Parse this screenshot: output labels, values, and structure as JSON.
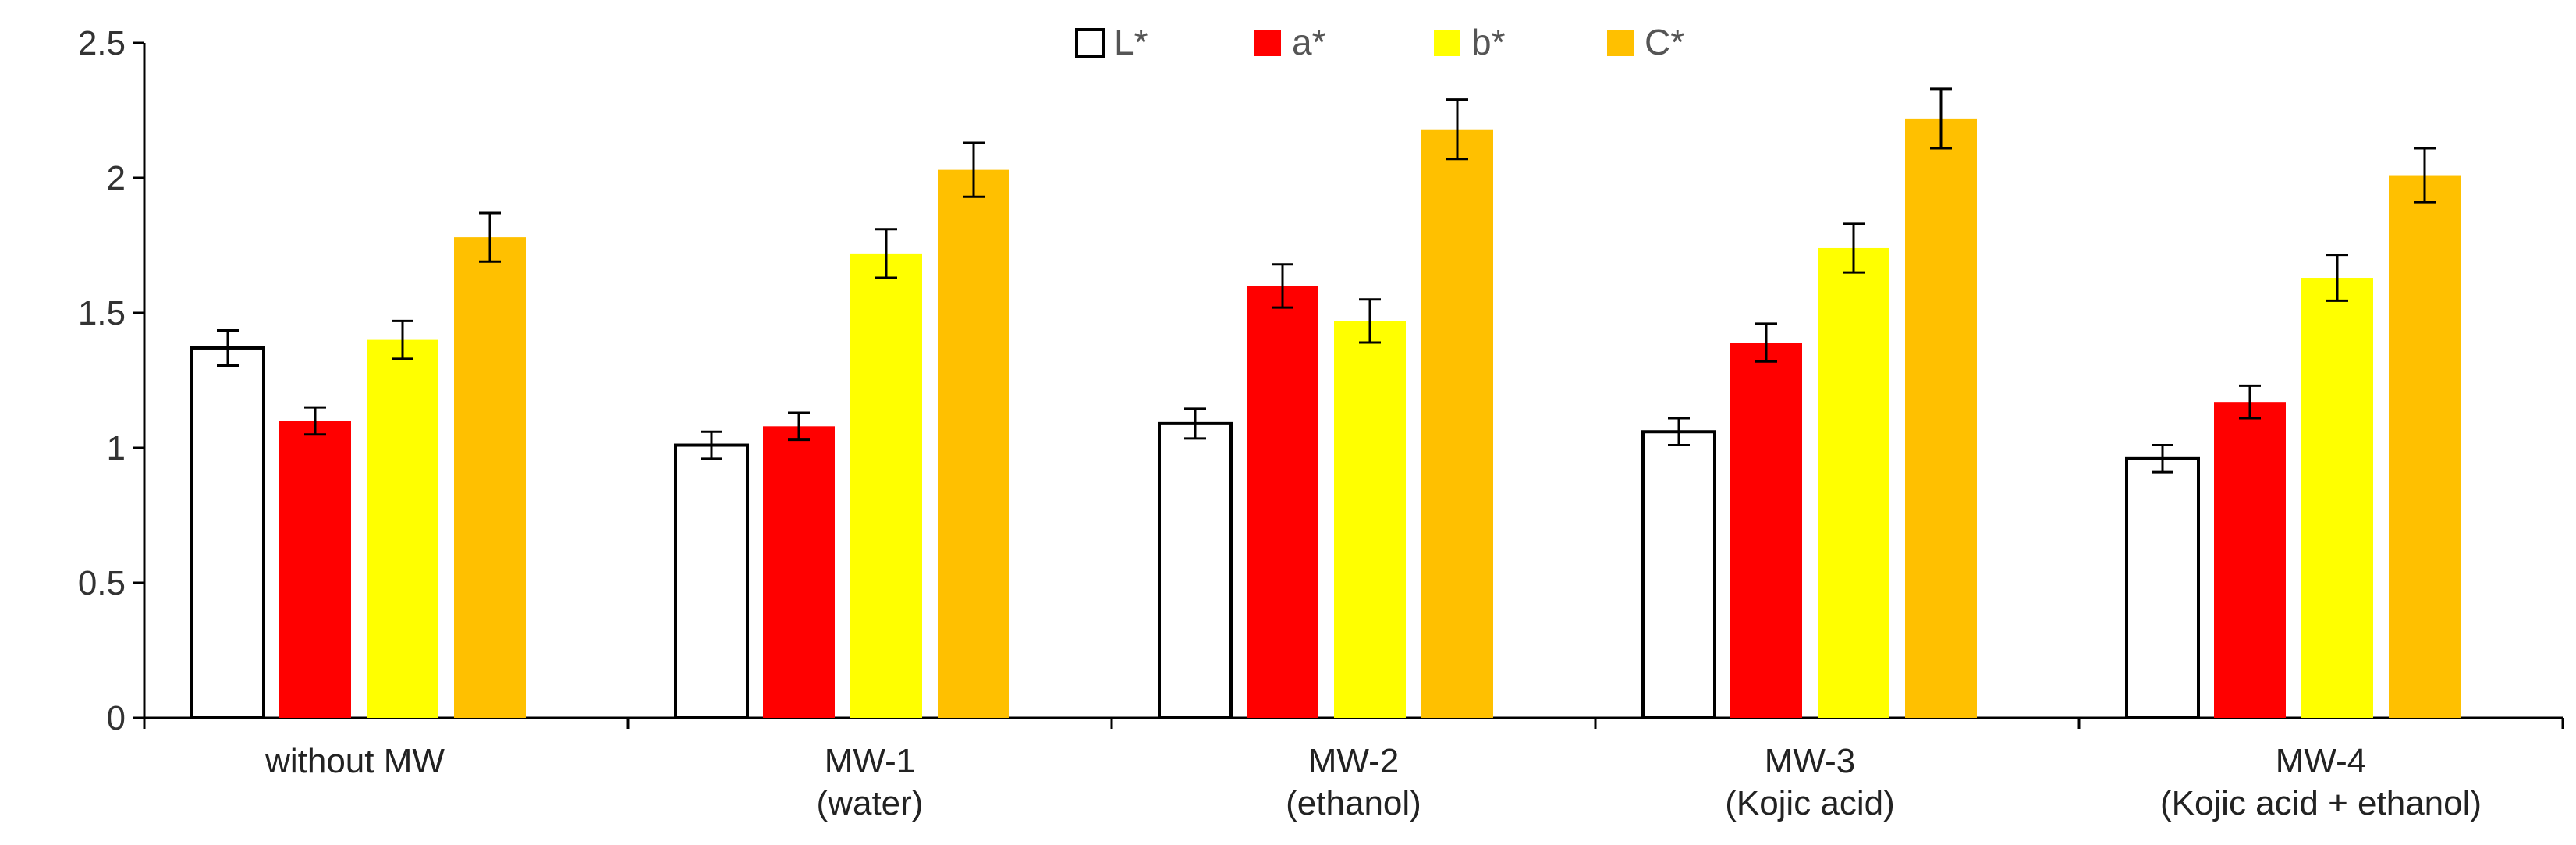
{
  "chart_data": {
    "type": "bar",
    "title": "",
    "xlabel": "",
    "ylabel": "",
    "ylim": [
      0,
      2.5
    ],
    "yticks": [
      "0",
      "0.5",
      "1",
      "1.5",
      "2",
      "2.5"
    ],
    "ytick_values": [
      0,
      0.5,
      1,
      1.5,
      2,
      2.5
    ],
    "grid": false,
    "legend_position": "top-center",
    "categories": [
      [
        "without MW"
      ],
      [
        "MW-1",
        "(water)"
      ],
      [
        "MW-2",
        "(ethanol)"
      ],
      [
        "MW-3",
        "(Kojic acid)"
      ],
      [
        "MW-4",
        "(Kojic acid + ethanol)"
      ]
    ],
    "series": [
      {
        "name": "L*",
        "color": "#ffffff",
        "stroke": "#000000",
        "values": [
          1.37,
          1.01,
          1.09,
          1.06,
          0.96
        ],
        "errors": [
          0.065,
          0.05,
          0.055,
          0.05,
          0.05
        ]
      },
      {
        "name": "a*",
        "color": "#ff0000",
        "stroke": "#ff0000",
        "values": [
          1.1,
          1.08,
          1.6,
          1.39,
          1.17
        ],
        "errors": [
          0.05,
          0.05,
          0.08,
          0.07,
          0.06
        ]
      },
      {
        "name": "b*",
        "color": "#ffff00",
        "stroke": "#ffff00",
        "values": [
          1.4,
          1.72,
          1.47,
          1.74,
          1.63
        ],
        "errors": [
          0.07,
          0.09,
          0.08,
          0.09,
          0.085
        ]
      },
      {
        "name": "C*",
        "color": "#ffc000",
        "stroke": "#ffc000",
        "values": [
          1.78,
          2.03,
          2.18,
          2.22,
          2.01
        ],
        "errors": [
          0.09,
          0.1,
          0.11,
          0.11,
          0.1
        ]
      }
    ]
  }
}
